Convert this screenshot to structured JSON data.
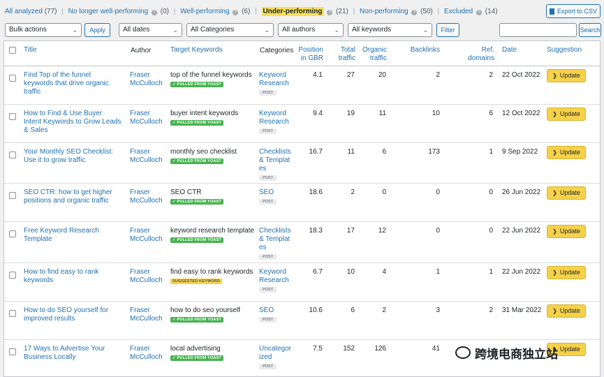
{
  "filters": [
    {
      "label": "All analyzed",
      "count": "(77)"
    },
    {
      "label": "No longer well-performing",
      "count": "(0)"
    },
    {
      "label": "Well-performing",
      "count": "(6)"
    },
    {
      "label": "Under-performing",
      "count": "(21)"
    },
    {
      "label": "Non-performing",
      "count": "(50)"
    },
    {
      "label": "Excluded",
      "count": "(14)"
    }
  ],
  "help_glyph": "?",
  "export_label": "Export to CSV",
  "toolbar": {
    "bulk_actions": "Bulk actions",
    "apply": "Apply",
    "dates": "All dates",
    "categories": "All Categories",
    "authors": "All authors",
    "keywords": "All keywords",
    "filter": "Filter",
    "search_value": "",
    "search": "Search",
    "chevron": "⌄"
  },
  "columns": {
    "title": "Title",
    "author": "Author",
    "target_keywords": "Target Keywords",
    "categories": "Categories",
    "position": "Position in GBR",
    "total_traffic": "Total traffic",
    "organic_traffic": "Organic traffic",
    "backlinks": "Backlinks",
    "ref_domains": "Ref. domains",
    "date": "Date",
    "suggestion": "Suggestion"
  },
  "rows": [
    {
      "title": "Find Top of the funnel keywords that drive organic traffic",
      "author": "Fraser McCulloch",
      "keyword": "top of the funnel keywords",
      "badge": "✓ PULLED FROM YOAST",
      "badge_type": "yoast",
      "category": "Keyword Research",
      "post_type": "POST",
      "position": "4.1",
      "total_traffic": "27",
      "organic_traffic": "20",
      "backlinks": "2",
      "ref_domains": "2",
      "date": "22 Oct 2022",
      "action": "Update"
    },
    {
      "title": "How to Find & Use Buyer Intent Keywords to Grow Leads & Sales",
      "author": "Fraser McCulloch",
      "keyword": "buyer intent keywords",
      "badge": "✓ PULLED FROM YOAST",
      "badge_type": "yoast",
      "category": "Keyword Research",
      "post_type": "POST",
      "position": "9.4",
      "total_traffic": "19",
      "organic_traffic": "11",
      "backlinks": "10",
      "ref_domains": "6",
      "date": "12 Oct 2022",
      "action": "Update"
    },
    {
      "title": "Your Monthly SEO Checklist: Use it to grow traffic",
      "author": "Fraser McCulloch",
      "keyword": "monthly seo checklist",
      "badge": "✓ PULLED FROM YOAST",
      "badge_type": "yoast",
      "category": "Checklists & Templates",
      "post_type": "POST",
      "position": "16.7",
      "total_traffic": "11",
      "organic_traffic": "6",
      "backlinks": "173",
      "ref_domains": "1",
      "date": "9 Sep 2022",
      "action": "Update"
    },
    {
      "title": "SEO CTR: how to get higher positions and organic traffic",
      "author": "Fraser McCulloch",
      "keyword": "SEO CTR",
      "badge": "✓ PULLED FROM YOAST",
      "badge_type": "yoast",
      "category": "SEO",
      "post_type": "POST",
      "position": "18.6",
      "total_traffic": "2",
      "organic_traffic": "0",
      "backlinks": "0",
      "ref_domains": "0",
      "date": "26 Jun 2022",
      "action": "Update"
    },
    {
      "title": "Free Keyword Research Template",
      "author": "Fraser McCulloch",
      "keyword": "keyword research template",
      "badge": "✓ PULLED FROM YOAST",
      "badge_type": "yoast",
      "category": "Checklists & Templates",
      "post_type": "POST",
      "position": "18.3",
      "total_traffic": "17",
      "organic_traffic": "12",
      "backlinks": "0",
      "ref_domains": "0",
      "date": "22 Jun 2022",
      "action": "Update"
    },
    {
      "title": "How to find easy to rank keywords",
      "author": "Fraser McCulloch",
      "keyword": "find easy to rank keywords",
      "badge": "SUGGESTED KEYWORD",
      "badge_type": "suggested",
      "category": "Keyword Research",
      "post_type": "POST",
      "position": "6.7",
      "total_traffic": "10",
      "organic_traffic": "4",
      "backlinks": "1",
      "ref_domains": "1",
      "date": "22 Jun 2022",
      "action": "Update"
    },
    {
      "title": "How to do SEO yourself for improved results",
      "author": "Fraser McCulloch",
      "keyword": "how to do seo yourself",
      "badge": "✓ PULLED FROM YOAST",
      "badge_type": "yoast",
      "category": "SEO",
      "post_type": "POST",
      "position": "10.6",
      "total_traffic": "6",
      "organic_traffic": "2",
      "backlinks": "3",
      "ref_domains": "2",
      "date": "31 Mar 2022",
      "action": "Update"
    },
    {
      "title": "17 Ways to Advertise Your Business Locally",
      "author": "Fraser McCulloch",
      "keyword": "local advertising",
      "badge": "✓ PULLED FROM YOAST",
      "badge_type": "yoast",
      "category": "Uncategorized",
      "post_type": "POST",
      "position": "7.5",
      "total_traffic": "152",
      "organic_traffic": "126",
      "backlinks": "41",
      "ref_domains": "",
      "date": "",
      "action": "Update"
    }
  ],
  "update_chevron": "❯",
  "watermark": "跨境电商独立站",
  "colors": {
    "link": "#2271b1",
    "highlight": "#f6e05e",
    "update_button": "#f6d14a",
    "yoast_badge": "#46b450"
  }
}
